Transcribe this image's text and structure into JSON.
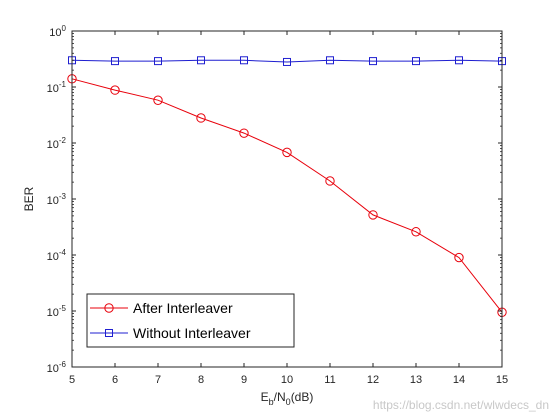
{
  "chart_data": {
    "type": "line",
    "x": [
      5,
      6,
      7,
      8,
      9,
      10,
      11,
      12,
      13,
      14,
      15
    ],
    "xlabel_main": "E",
    "xlabel_sub1": "b",
    "xlabel_mid": "/N",
    "xlabel_sub2": "0",
    "xlabel_tail": "(dB)",
    "ylabel": "BER",
    "xlim": [
      5,
      15
    ],
    "ylim": [
      1e-06,
      1
    ],
    "yscale": "log",
    "x_ticks": [
      "5",
      "6",
      "7",
      "8",
      "9",
      "10",
      "11",
      "12",
      "13",
      "14",
      "15"
    ],
    "y_tick_base": "10",
    "y_tick_exponents": [
      "-6",
      "-5",
      "-4",
      "-3",
      "-2",
      "-1",
      "0"
    ],
    "grid": false,
    "legend_position": "bottom-left",
    "series": [
      {
        "name": "After Interleaver",
        "color": "#e8000b",
        "marker": "circle",
        "values": [
          0.14,
          0.088,
          0.058,
          0.028,
          0.015,
          0.0068,
          0.0021,
          0.00052,
          0.00026,
          9e-05,
          9.5e-06
        ]
      },
      {
        "name": "Without Interleaver",
        "color": "#1f1fd0",
        "marker": "square",
        "values": [
          0.3,
          0.29,
          0.29,
          0.3,
          0.3,
          0.28,
          0.3,
          0.29,
          0.29,
          0.3,
          0.29
        ]
      }
    ]
  },
  "watermark": "https://blog.csdn.net/wlwdecs_dn"
}
